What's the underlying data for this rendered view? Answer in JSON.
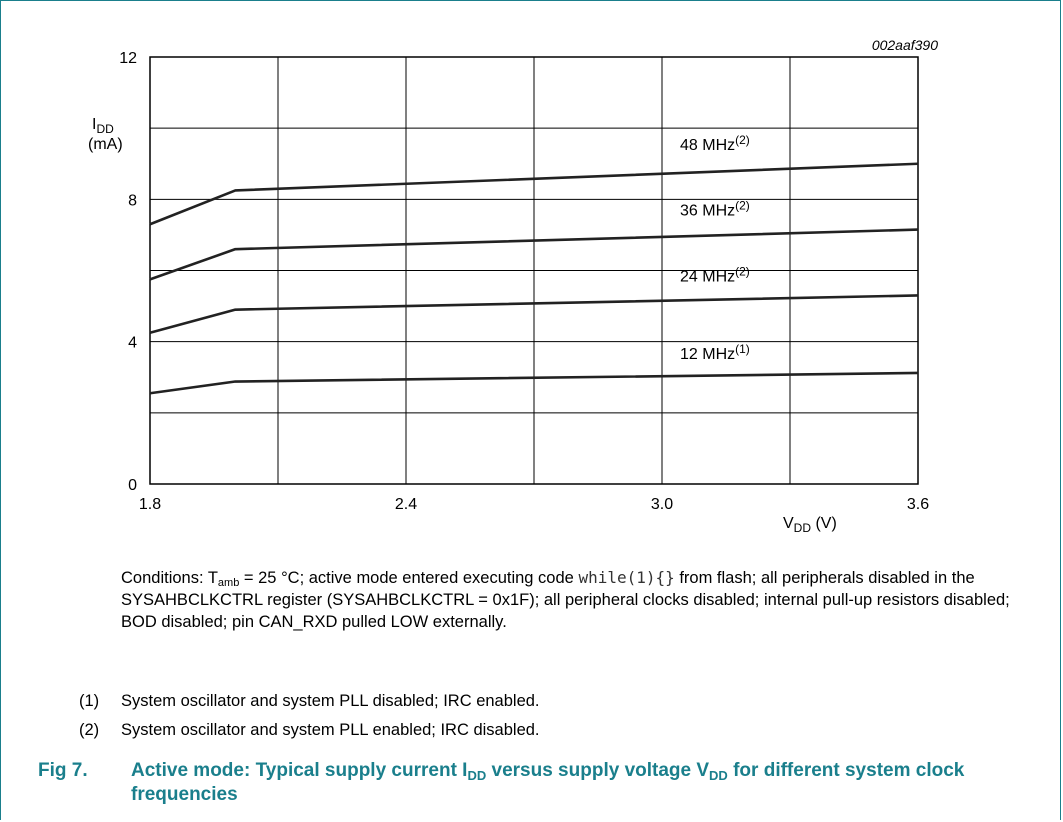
{
  "chart_data": {
    "type": "line",
    "id_code": "002aaf390",
    "x_ticks": [
      "1.8",
      "2.4",
      "3.0",
      "3.6"
    ],
    "y_ticks": [
      "0",
      "4",
      "8",
      "12"
    ],
    "xlim": [
      1.8,
      3.6
    ],
    "ylim": [
      0,
      12
    ],
    "xlabel": {
      "main": "V",
      "sub": "DD",
      "unit": " (V)"
    },
    "ylabel": {
      "main": "I",
      "sub": "DD",
      "unit": "(mA)"
    },
    "grid": true,
    "x": [
      1.8,
      2.0,
      3.6
    ],
    "series": [
      {
        "name": "48 MHz",
        "note": "(2)",
        "values": [
          7.3,
          8.25,
          9.0
        ]
      },
      {
        "name": "36 MHz",
        "note": "(2)",
        "values": [
          5.75,
          6.6,
          7.15
        ]
      },
      {
        "name": "24 MHz",
        "note": "(2)",
        "values": [
          4.25,
          4.9,
          5.3
        ]
      },
      {
        "name": "12 MHz",
        "note": "(1)",
        "values": [
          2.55,
          2.88,
          3.12
        ]
      }
    ]
  },
  "conditions": {
    "p1": "Conditions: T",
    "sub_amb": "amb",
    "p2": " = 25 °C; active mode entered executing code ",
    "code": "while(1){}",
    "p3": " from flash; all peripherals disabled in the SYSAHBCLKCTRL register (SYSAHBCLKCTRL = 0x1F); all peripheral clocks disabled; internal pull-up resistors disabled; BOD disabled; pin CAN_RXD pulled LOW externally."
  },
  "notes": [
    {
      "num": "(1)",
      "text": "System oscillator and system PLL disabled; IRC enabled."
    },
    {
      "num": "(2)",
      "text": "System oscillator and system PLL enabled; IRC disabled."
    }
  ],
  "figure": {
    "label": "Fig 7.",
    "t1": "Active mode: Typical supply current I",
    "sub1": "DD",
    "t2": " versus supply voltage V",
    "sub2": "DD",
    "t3": " for different system clock frequencies"
  }
}
